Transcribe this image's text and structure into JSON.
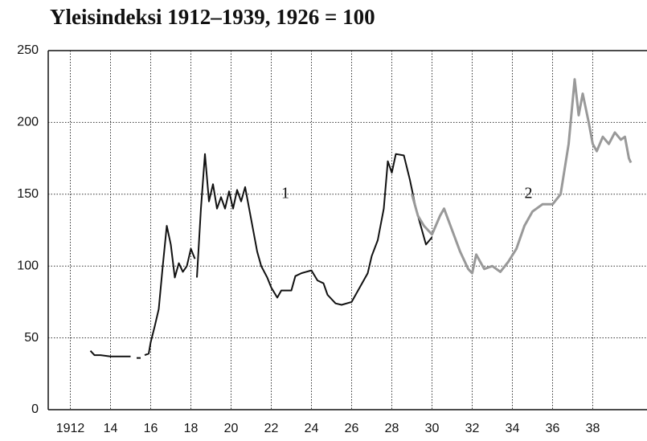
{
  "chart_data": {
    "type": "line",
    "title": "Yleisindeksi 1912–1939, 1926 = 100",
    "xlim": [
      1910.9,
      1940.7
    ],
    "ylim": [
      0,
      250
    ],
    "xticks": [
      1912,
      {
        "value": 1914,
        "label": "14"
      },
      {
        "value": 1916,
        "label": "16"
      },
      {
        "value": 1918,
        "label": "18"
      },
      {
        "value": 1920,
        "label": "20"
      },
      {
        "value": 1922,
        "label": "22"
      },
      {
        "value": 1924,
        "label": "24"
      },
      {
        "value": 1926,
        "label": "26"
      },
      {
        "value": 1928,
        "label": "28"
      },
      {
        "value": 1930,
        "label": "30"
      },
      {
        "value": 1932,
        "label": "32"
      },
      {
        "value": 1934,
        "label": "34"
      },
      {
        "value": 1936,
        "label": "36"
      },
      {
        "value": 1938,
        "label": "38"
      }
    ],
    "yticks": [
      0,
      50,
      100,
      150,
      200,
      250
    ],
    "grid": true,
    "annotations": [
      {
        "text": "1",
        "x": 1922.7,
        "y": 150
      },
      {
        "text": "2",
        "x": 1934.8,
        "y": 150
      }
    ],
    "series": [
      {
        "color": "#111111",
        "x": [
          1913.0,
          1913.2,
          1913.5,
          1914,
          1914.5,
          1915.0,
          null,
          1915.3,
          1915.5,
          null,
          1915.7,
          1915.9,
          1916.0,
          1916.2,
          1916.4,
          1916.6,
          1916.8,
          1917.0,
          1917.2,
          1917.4,
          1917.6,
          1917.8,
          1918.0,
          1918.2,
          null,
          1918.3,
          1918.5,
          1918.7,
          1918.9,
          1919.1,
          1919.3,
          1919.5,
          1919.7,
          1919.9,
          1920.1,
          1920.3,
          1920.5,
          1920.7,
          1920.9,
          1921.1,
          1921.3,
          1921.5,
          1921.8,
          1922.0,
          1922.3,
          1922.5,
          1923.0,
          1923.2,
          1923.5,
          1924.0,
          1924.3,
          1924.6,
          1924.8,
          1925.2,
          1925.5,
          1926.0,
          1926.4,
          1926.8,
          1927.0,
          1927.3,
          1927.6,
          1927.8,
          1928.0,
          1928.2,
          1928.6,
          1928.9,
          1929.2,
          1929.5,
          1929.7,
          1930.0
        ],
        "values": [
          41,
          38,
          38,
          37,
          37,
          37,
          null,
          36,
          36,
          null,
          38,
          39,
          47,
          58,
          70,
          100,
          128,
          115,
          92,
          102,
          96,
          100,
          112,
          105,
          null,
          92,
          140,
          178,
          145,
          157,
          140,
          148,
          140,
          152,
          140,
          153,
          145,
          155,
          140,
          125,
          110,
          100,
          92,
          85,
          78,
          83,
          83,
          93,
          95,
          97,
          90,
          88,
          80,
          74,
          73,
          75,
          85,
          95,
          107,
          118,
          140,
          173,
          165,
          178,
          177,
          160,
          140,
          125,
          115,
          120
        ]
      },
      {
        "color": "#999999",
        "x": [
          1929.0,
          1929.3,
          1929.6,
          1930.0,
          1930.4,
          1930.6,
          1931.0,
          1931.4,
          1931.8,
          1932.0,
          1932.2,
          1932.6,
          1933.0,
          1933.4,
          1933.8,
          1934.2,
          1934.6,
          1935.0,
          1935.5,
          1936.0,
          1936.4,
          1936.8,
          1937.0,
          1937.1,
          1937.3,
          1937.5,
          1937.8,
          1938.0,
          1938.2,
          1938.5,
          1938.8,
          1939.1,
          1939.4,
          1939.6,
          1939.8,
          1939.9
        ],
        "values": [
          150,
          135,
          128,
          122,
          135,
          140,
          125,
          110,
          98,
          95,
          108,
          98,
          100,
          96,
          103,
          112,
          128,
          138,
          143,
          143,
          150,
          185,
          215,
          230,
          205,
          220,
          200,
          185,
          180,
          190,
          185,
          193,
          188,
          190,
          175,
          172
        ]
      }
    ]
  }
}
